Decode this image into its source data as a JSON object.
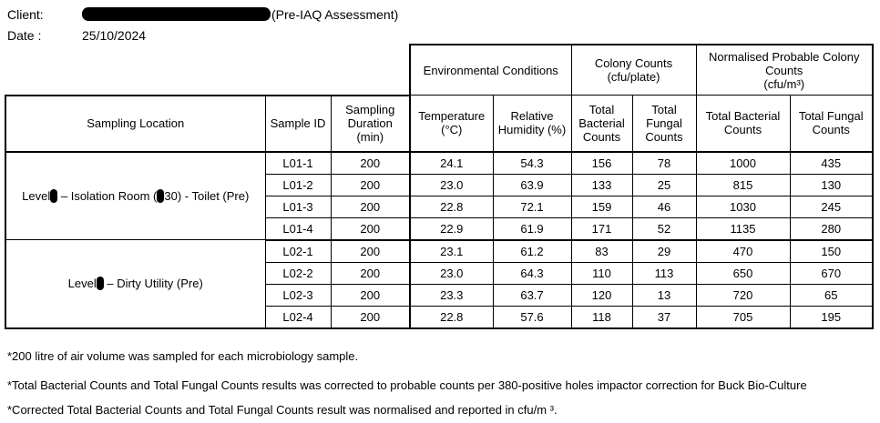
{
  "header": {
    "client_label": "Client:",
    "client_suffix": "(Pre-IAQ Assessment)",
    "date_label": "Date :",
    "date_value": "25/10/2024"
  },
  "table": {
    "group_headers": {
      "environmental": "Environmental Conditions",
      "colony_counts": "Colony Counts",
      "colony_counts_unit": "(cfu/plate)",
      "normalised_line1": "Normalised Probable Colony",
      "normalised_line2": "Counts",
      "normalised_unit": "(cfu/m³)"
    },
    "columns": {
      "location": "Sampling Location",
      "sample_id": "Sample ID",
      "duration_1": "Sampling",
      "duration_2": "Duration",
      "duration_3": "(min)",
      "temp_1": "Temperature",
      "temp_2": "(°C)",
      "rh_1": "Relative",
      "rh_2": "Humidity (%)",
      "tbc_1": "Total",
      "tbc_2": "Bacterial",
      "tbc_3": "Counts",
      "tfc_1": "Total",
      "tfc_2": "Fungal",
      "tfc_3": "Counts",
      "ntbc_1": "Total Bacterial",
      "ntbc_2": "Counts",
      "ntfc_1": "Total Fungal",
      "ntfc_2": "Counts"
    },
    "groups": [
      {
        "loc_a": "Level",
        "loc_b": " – Isolation Room (",
        "loc_c": "30) - Toilet (Pre)",
        "rows": [
          {
            "id": "L01-1",
            "duration": "200",
            "temp": "24.1",
            "rh": "54.3",
            "tbc": "156",
            "tfc": "78",
            "ntbc": "1000",
            "ntfc": "435"
          },
          {
            "id": "L01-2",
            "duration": "200",
            "temp": "23.0",
            "rh": "63.9",
            "tbc": "133",
            "tfc": "25",
            "ntbc": "815",
            "ntfc": "130"
          },
          {
            "id": "L01-3",
            "duration": "200",
            "temp": "22.8",
            "rh": "72.1",
            "tbc": "159",
            "tfc": "46",
            "ntbc": "1030",
            "ntfc": "245"
          },
          {
            "id": "L01-4",
            "duration": "200",
            "temp": "22.9",
            "rh": "61.9",
            "tbc": "171",
            "tfc": "52",
            "ntbc": "1135",
            "ntfc": "280"
          }
        ]
      },
      {
        "loc_a": "Level",
        "loc_b": " – Dirty Utility (Pre)",
        "rows": [
          {
            "id": "L02-1",
            "duration": "200",
            "temp": "23.1",
            "rh": "61.2",
            "tbc": "83",
            "tfc": "29",
            "ntbc": "470",
            "ntfc": "150"
          },
          {
            "id": "L02-2",
            "duration": "200",
            "temp": "23.0",
            "rh": "64.3",
            "tbc": "110",
            "tfc": "113",
            "ntbc": "650",
            "ntfc": "670"
          },
          {
            "id": "L02-3",
            "duration": "200",
            "temp": "23.3",
            "rh": "63.7",
            "tbc": "120",
            "tfc": "13",
            "ntbc": "720",
            "ntfc": "65"
          },
          {
            "id": "L02-4",
            "duration": "200",
            "temp": "22.8",
            "rh": "57.6",
            "tbc": "118",
            "tfc": "37",
            "ntbc": "705",
            "ntfc": "195"
          }
        ]
      }
    ]
  },
  "notes": [
    "*200 litre of air volume was sampled for each microbiology sample.",
    "*Total Bacterial Counts and Total Fungal Counts results was corrected to probable counts per 380-positive holes impactor correction for Buck Bio-Culture",
    "*Corrected Total Bacterial Counts and Total Fungal Counts result was normalised and reported in cfu/m ³."
  ]
}
